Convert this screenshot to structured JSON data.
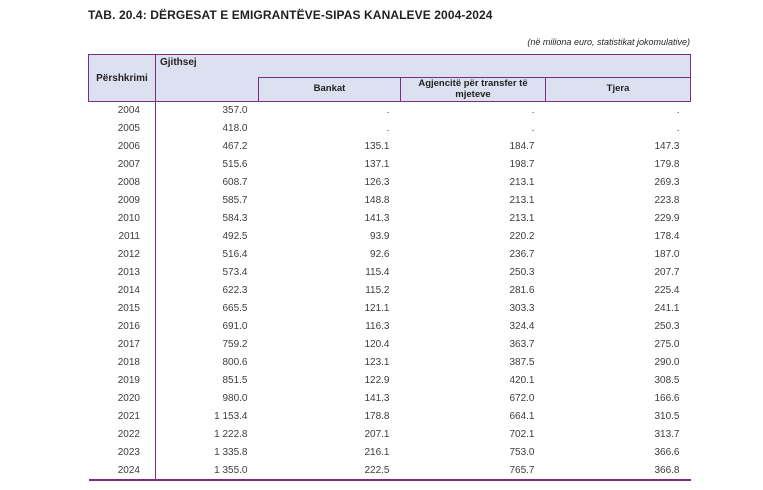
{
  "title": "TAB. 20.4: DËRGESAT E EMIGRANTËVE-SIPAS KANALEVE 2004-2024",
  "subtitle": "(në miliona euro, statistikat jokomulative)",
  "colors": {
    "border_purple": "#7d2b80",
    "header_background": "#dbe1f1"
  },
  "table": {
    "row_header": "Përshkrimi",
    "group_header": "Gjithsej",
    "sub_headers": [
      "Bankat",
      "Agjencitë për transfer të mjeteve",
      "Tjera"
    ],
    "rows": [
      {
        "year": "2004",
        "gjithsej": "357.0",
        "bankat": ".",
        "agjencite": ".",
        "tjera": "."
      },
      {
        "year": "2005",
        "gjithsej": "418.0",
        "bankat": ".",
        "agjencite": ".",
        "tjera": "."
      },
      {
        "year": "2006",
        "gjithsej": "467.2",
        "bankat": "135.1",
        "agjencite": "184.7",
        "tjera": "147.3"
      },
      {
        "year": "2007",
        "gjithsej": "515.6",
        "bankat": "137.1",
        "agjencite": "198.7",
        "tjera": "179.8"
      },
      {
        "year": "2008",
        "gjithsej": "608.7",
        "bankat": "126.3",
        "agjencite": "213.1",
        "tjera": "269.3"
      },
      {
        "year": "2009",
        "gjithsej": "585.7",
        "bankat": "148.8",
        "agjencite": "213.1",
        "tjera": "223.8"
      },
      {
        "year": "2010",
        "gjithsej": "584.3",
        "bankat": "141.3",
        "agjencite": "213.1",
        "tjera": "229.9"
      },
      {
        "year": "2011",
        "gjithsej": "492.5",
        "bankat": "93.9",
        "agjencite": "220.2",
        "tjera": "178.4"
      },
      {
        "year": "2012",
        "gjithsej": "516.4",
        "bankat": "92.6",
        "agjencite": "236.7",
        "tjera": "187.0"
      },
      {
        "year": "2013",
        "gjithsej": "573.4",
        "bankat": "115.4",
        "agjencite": "250.3",
        "tjera": "207.7"
      },
      {
        "year": "2014",
        "gjithsej": "622.3",
        "bankat": "115.2",
        "agjencite": "281.6",
        "tjera": "225.4"
      },
      {
        "year": "2015",
        "gjithsej": "665.5",
        "bankat": "121.1",
        "agjencite": "303.3",
        "tjera": "241.1"
      },
      {
        "year": "2016",
        "gjithsej": "691.0",
        "bankat": "116.3",
        "agjencite": "324.4",
        "tjera": "250.3"
      },
      {
        "year": "2017",
        "gjithsej": "759.2",
        "bankat": "120.4",
        "agjencite": "363.7",
        "tjera": "275.0"
      },
      {
        "year": "2018",
        "gjithsej": "800.6",
        "bankat": "123.1",
        "agjencite": "387.5",
        "tjera": "290.0"
      },
      {
        "year": "2019",
        "gjithsej": "851.5",
        "bankat": "122.9",
        "agjencite": "420.1",
        "tjera": "308.5"
      },
      {
        "year": "2020",
        "gjithsej": "980.0",
        "bankat": "141.3",
        "agjencite": "672.0",
        "tjera": "166.6"
      },
      {
        "year": "2021",
        "gjithsej": "1 153.4",
        "bankat": "178.8",
        "agjencite": "664.1",
        "tjera": "310.5"
      },
      {
        "year": "2022",
        "gjithsej": "1 222.8",
        "bankat": "207.1",
        "agjencite": "702.1",
        "tjera": "313.7"
      },
      {
        "year": "2023",
        "gjithsej": "1 335.8",
        "bankat": "216.1",
        "agjencite": "753.0",
        "tjera": "366.6"
      },
      {
        "year": "2024",
        "gjithsej": "1 355.0",
        "bankat": "222.5",
        "agjencite": "765.7",
        "tjera": "366.8"
      }
    ]
  }
}
